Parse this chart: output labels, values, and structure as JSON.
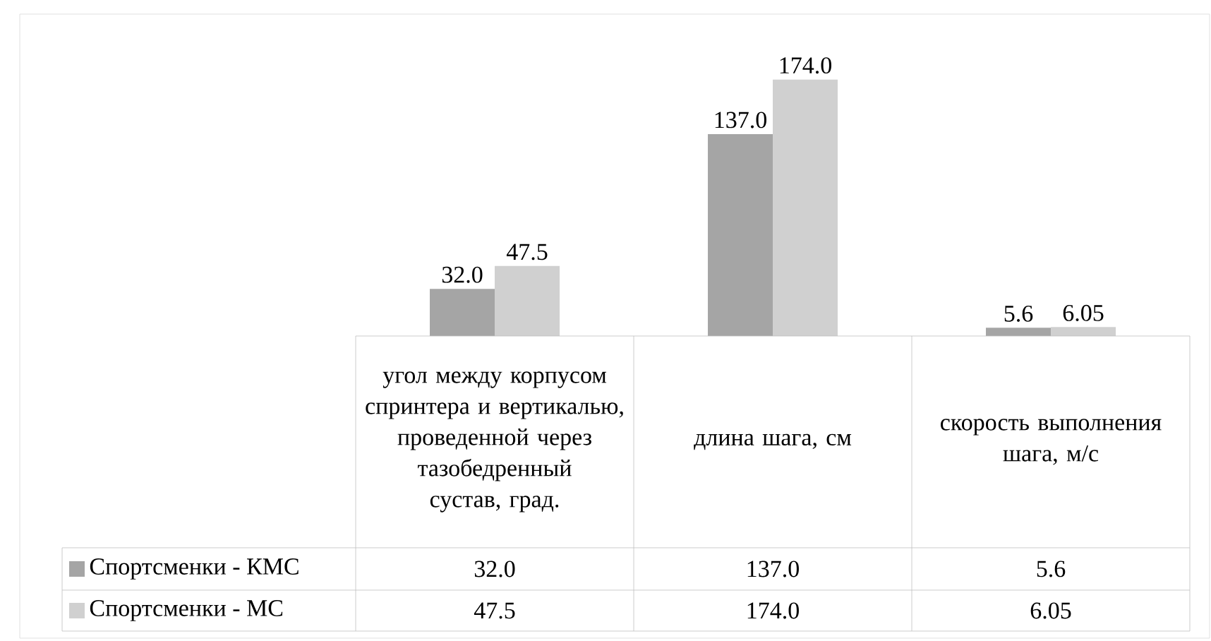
{
  "chart_data": {
    "type": "bar",
    "categories": [
      "угол между корпусом спринтера и вертикалью, проведенной через тазобедренный сустав, град.",
      "длина шага, см",
      "скорость выполнения шага, м/с"
    ],
    "series": [
      {
        "name": "Спортсменки - КМС",
        "color": "#a5a5a5",
        "values": [
          32.0,
          137.0,
          5.6
        ],
        "value_labels": [
          "32.0",
          "137.0",
          "5.6"
        ]
      },
      {
        "name": "Спортсменки - МС",
        "color": "#d0d0d0",
        "values": [
          47.5,
          174.0,
          6.05
        ],
        "value_labels": [
          "47.5",
          "174.0",
          "6.05"
        ]
      }
    ],
    "legend": "bottom"
  }
}
